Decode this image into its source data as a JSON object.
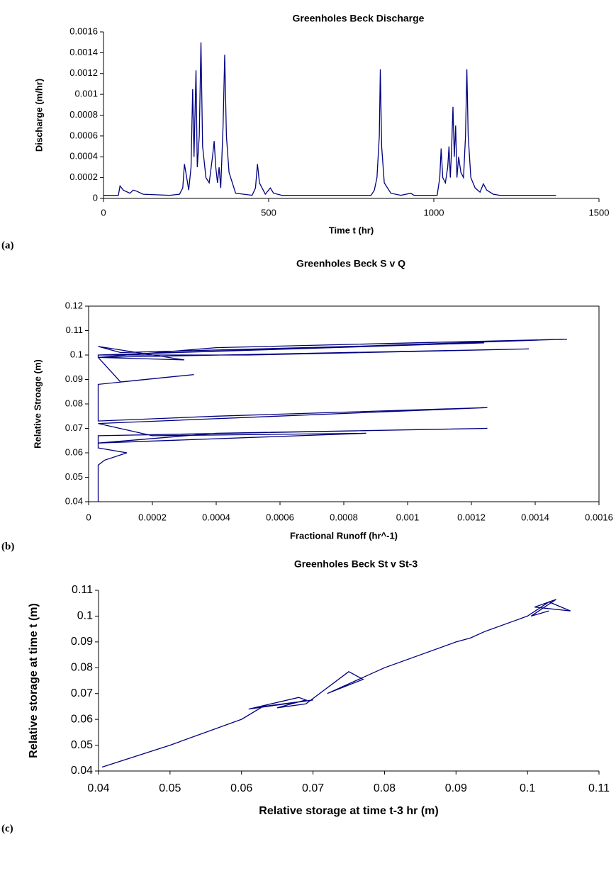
{
  "chart_data": [
    {
      "type": "line",
      "title": "Greenholes Beck Discharge",
      "panel_label": "(a)",
      "x_label": "Time t (hr)",
      "y_label": "Discharge (m/hr)",
      "x": [
        0,
        45,
        50,
        60,
        80,
        90,
        100,
        120,
        200,
        230,
        240,
        245,
        252,
        258,
        265,
        270,
        274,
        280,
        284,
        290,
        295,
        300,
        310,
        320,
        330,
        335,
        340,
        345,
        350,
        355,
        362,
        367,
        372,
        380,
        400,
        450,
        460,
        466,
        472,
        490,
        505,
        515,
        540,
        810,
        820,
        828,
        835,
        838,
        842,
        850,
        870,
        900,
        930,
        940,
        1010,
        1018,
        1022,
        1027,
        1035,
        1042,
        1046,
        1050,
        1054,
        1058,
        1062,
        1066,
        1070,
        1075,
        1082,
        1090,
        1096,
        1100,
        1104,
        1112,
        1125,
        1140,
        1150,
        1160,
        1180,
        1200,
        1370
      ],
      "series": [
        {
          "name": "Discharge",
          "color": "#000080",
          "values": [
            3e-05,
            3e-05,
            0.00012,
            8e-05,
            5e-05,
            8e-05,
            7e-05,
            4e-05,
            3e-05,
            4e-05,
            0.0001,
            0.00033,
            0.0002,
            8e-05,
            0.0003,
            0.00105,
            0.0004,
            0.00123,
            0.0003,
            0.0006,
            0.0015,
            0.0005,
            0.0002,
            0.00015,
            0.0004,
            0.00055,
            0.0003,
            0.00015,
            0.0003,
            0.0001,
            0.0007,
            0.00138,
            0.0006,
            0.00025,
            5e-05,
            3e-05,
            0.0001,
            0.00033,
            0.00015,
            4e-05,
            0.0001,
            5e-05,
            3e-05,
            3e-05,
            8e-05,
            0.0002,
            0.0006,
            0.00124,
            0.0005,
            0.00015,
            5e-05,
            3e-05,
            5e-05,
            3e-05,
            3e-05,
            0.0002,
            0.00048,
            0.0002,
            0.00015,
            0.0003,
            0.0005,
            0.0002,
            0.0005,
            0.00088,
            0.0004,
            0.0007,
            0.0002,
            0.0004,
            0.00025,
            0.0002,
            0.0006,
            0.00124,
            0.0006,
            0.0002,
            0.0001,
            6e-05,
            0.00014,
            8e-05,
            4e-05,
            3e-05,
            3e-05
          ]
        }
      ],
      "xlim": [
        0,
        1500
      ],
      "xticks": [
        0,
        500,
        1000,
        1500
      ],
      "ylim": [
        0,
        0.0016
      ],
      "yticks": [
        0,
        0.0002,
        0.0004,
        0.0006,
        0.0008,
        0.001,
        0.0012,
        0.0014,
        0.0016
      ],
      "grid": false,
      "box": false
    },
    {
      "type": "line",
      "title": "Greenholes Beck S v Q",
      "panel_label": "(b)",
      "x_label": "Fractional Runoff (hr^-1)",
      "y_label": "Relative Stroage (m)",
      "x": [
        3e-05,
        3e-05,
        5e-05,
        0.00012,
        3e-05,
        3e-05,
        0.00125,
        0.0004,
        3e-05,
        0.00087,
        0.0002,
        3e-05,
        0.00125,
        0.0004,
        3e-05,
        3e-05,
        0.00033,
        0.0001,
        3e-05,
        3e-05,
        0.0015,
        0.0004,
        3e-05,
        0.00138,
        0.0005,
        3e-05,
        0.00124,
        0.0001,
        3e-05,
        0.0003,
        3e-05
      ],
      "series": [
        {
          "name": "S v Q",
          "color": "#000080",
          "values": [
            0.04,
            0.055,
            0.057,
            0.06,
            0.062,
            0.067,
            0.07,
            0.068,
            0.064,
            0.068,
            0.067,
            0.072,
            0.0785,
            0.075,
            0.073,
            0.088,
            0.092,
            0.089,
            0.099,
            0.1,
            0.1065,
            0.103,
            0.099,
            0.1025,
            0.1,
            0.1,
            0.105,
            0.101,
            0.1035,
            0.098,
            0.099
          ]
        }
      ],
      "xlim": [
        0,
        0.0016
      ],
      "xticks": [
        0,
        0.0002,
        0.0004,
        0.0006,
        0.0008,
        0.001,
        0.0012,
        0.0014,
        0.0016
      ],
      "ylim": [
        0.04,
        0.12
      ],
      "yticks": [
        0.04,
        0.05,
        0.06,
        0.07,
        0.08,
        0.09,
        0.1,
        0.11,
        0.12
      ],
      "grid": false,
      "box": true
    },
    {
      "type": "line",
      "title": "Greenholes Beck St v St-3",
      "panel_label": "(c)",
      "x_label": "Relative storage at time t-3 hr (m)",
      "y_label": "Relative storage at time t (m)",
      "x": [
        0.0405,
        0.05,
        0.06,
        0.063,
        0.07,
        0.061,
        0.068,
        0.069,
        0.065,
        0.069,
        0.075,
        0.077,
        0.072,
        0.08,
        0.09,
        0.092,
        0.094,
        0.098,
        0.1,
        0.103,
        0.106,
        0.101,
        0.104,
        0.1005,
        0.103
      ],
      "series": [
        {
          "name": "St v St-3",
          "color": "#000080",
          "values": [
            0.0415,
            0.05,
            0.06,
            0.065,
            0.0675,
            0.064,
            0.0685,
            0.0675,
            0.0645,
            0.066,
            0.0785,
            0.0755,
            0.07,
            0.08,
            0.09,
            0.0915,
            0.094,
            0.098,
            0.1,
            0.1055,
            0.102,
            0.1035,
            0.1065,
            0.1,
            0.102
          ]
        }
      ],
      "xlim": [
        0.04,
        0.11
      ],
      "xticks": [
        0.04,
        0.05,
        0.06,
        0.07,
        0.08,
        0.09,
        0.1,
        0.11
      ],
      "ylim": [
        0.04,
        0.11
      ],
      "yticks": [
        0.04,
        0.05,
        0.06,
        0.07,
        0.08,
        0.09,
        0.1,
        0.11
      ],
      "grid": false,
      "box": false
    }
  ]
}
